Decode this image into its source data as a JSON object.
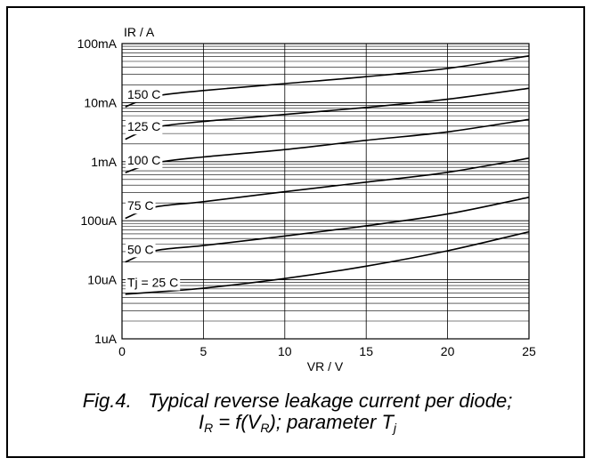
{
  "chart_data": {
    "type": "line",
    "y_scale": "log",
    "ylabel": "IR / A",
    "xlabel": "VR / V",
    "xlim": [
      0,
      25
    ],
    "ylim": [
      1e-06,
      0.1
    ],
    "x_ticks": [
      0,
      5,
      10,
      15,
      20,
      25
    ],
    "x_tick_labels": [
      "0",
      "5",
      "10",
      "15",
      "20",
      "25"
    ],
    "y_ticks": [
      1e-06,
      1e-05,
      0.0001,
      0.001,
      0.01,
      0.1
    ],
    "y_tick_labels": [
      "1uA",
      "10uA",
      "100uA",
      "1mA",
      "10mA",
      "100mA"
    ],
    "grid": true,
    "series": [
      {
        "name": "150 C",
        "x": [
          0.2,
          2,
          5,
          10,
          15,
          20,
          25
        ],
        "y": [
          0.0085,
          0.0128,
          0.016,
          0.021,
          0.0275,
          0.038,
          0.062
        ]
      },
      {
        "name": "125 C",
        "x": [
          0.2,
          2,
          5,
          10,
          15,
          20,
          25
        ],
        "y": [
          0.0024,
          0.0038,
          0.0048,
          0.0063,
          0.0083,
          0.0114,
          0.0175
        ]
      },
      {
        "name": "100 C",
        "x": [
          0.2,
          2,
          5,
          10,
          15,
          20,
          25
        ],
        "y": [
          0.00065,
          0.00095,
          0.0012,
          0.0016,
          0.0023,
          0.0032,
          0.0052
        ]
      },
      {
        "name": "75 C",
        "x": [
          0.2,
          2,
          5,
          10,
          15,
          20,
          25
        ],
        "y": [
          0.00011,
          0.00017,
          0.00021,
          0.00031,
          0.00045,
          0.00066,
          0.00115
        ]
      },
      {
        "name": "50 C",
        "x": [
          0.2,
          2,
          5,
          10,
          15,
          20,
          25
        ],
        "y": [
          2e-05,
          3.1e-05,
          3.8e-05,
          5.5e-05,
          8.2e-05,
          0.00013,
          0.00025
        ]
      },
      {
        "name": "Tj = 25 C",
        "x": [
          0.2,
          2,
          5,
          10,
          15,
          20,
          25
        ],
        "y": [
          5.7e-06,
          6.2e-06,
          7.2e-06,
          1.05e-05,
          1.7e-05,
          3.1e-05,
          6.5e-05
        ]
      }
    ]
  },
  "caption": {
    "fig_label": "Fig.4.",
    "title": "Typical reverse leakage current per diode;",
    "formula_i": "I",
    "formula_i_sub": "R",
    "formula_mid": " = f(V",
    "formula_v_sub": "R",
    "formula_end": "); parameter T",
    "formula_t_sub": "j"
  }
}
